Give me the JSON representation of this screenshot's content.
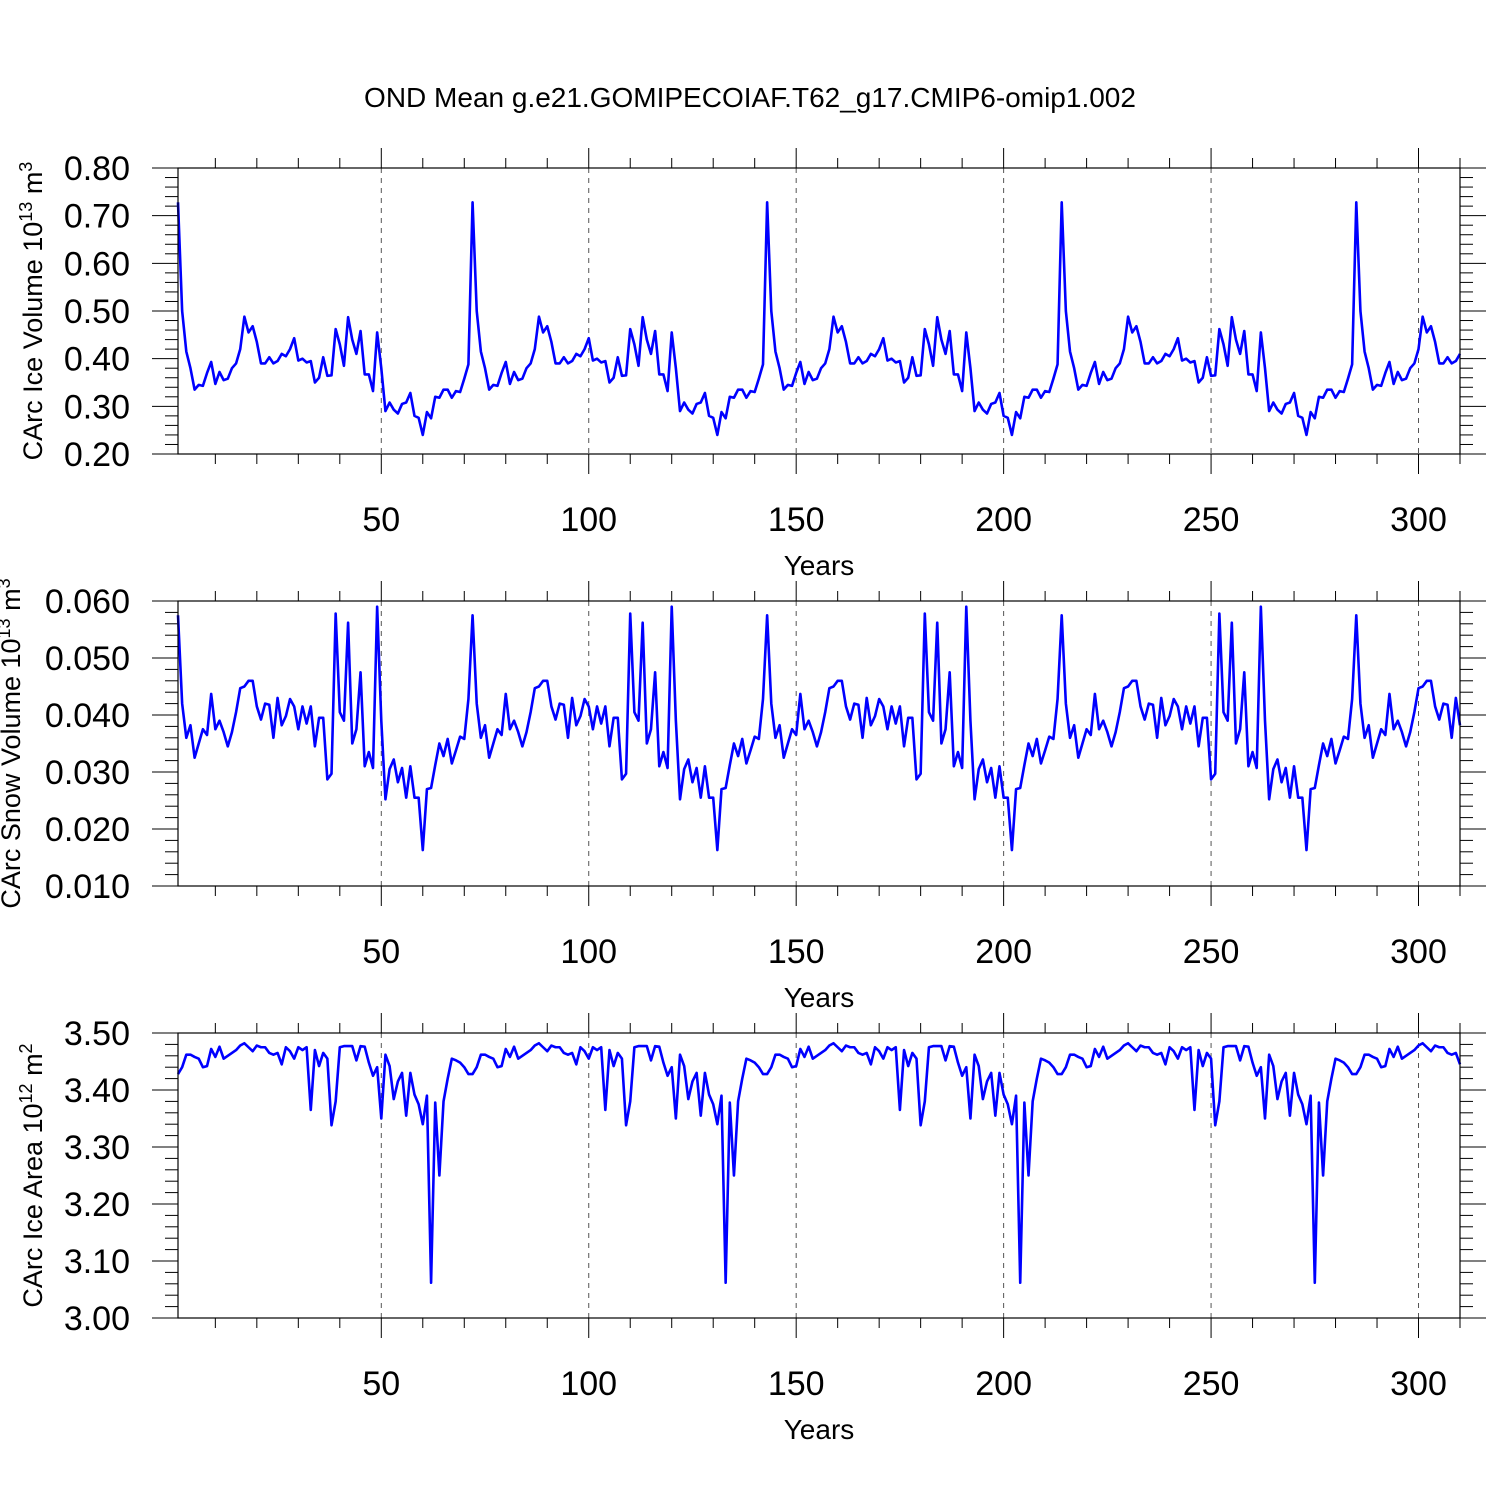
{
  "chart_data": {
    "title": "OND Mean g.e21.GOMIPECOIAF.T62_g17.CMIP6-omip1.002",
    "panels": [
      {
        "type": "line",
        "ylabel": "CArc Ice Volume 10",
        "ylabel_exp": "13",
        "ylabel_unit": " m",
        "ylabel_unit_exp": "3",
        "xlabel": "Years",
        "xlim": [
          1,
          310
        ],
        "ylim": [
          0.2,
          0.8
        ],
        "yticks": [
          0.2,
          0.3,
          0.4,
          0.5,
          0.6,
          0.7,
          0.8
        ],
        "ytick_labels": [
          "0.20",
          "0.30",
          "0.40",
          "0.50",
          "0.60",
          "0.70",
          "0.80"
        ],
        "xticks": [
          50,
          100,
          150,
          200,
          250,
          300
        ],
        "xtick_labels": [
          "50",
          "100",
          "150",
          "200",
          "250",
          "300"
        ],
        "x_start": 1,
        "cycle": [
          0.728,
          0.5,
          0.415,
          0.38,
          0.335,
          0.345,
          0.343,
          0.37,
          0.393,
          0.347,
          0.372,
          0.355,
          0.358,
          0.38,
          0.39,
          0.42,
          0.488,
          0.455,
          0.468,
          0.435,
          0.39,
          0.39,
          0.403,
          0.39,
          0.395,
          0.41,
          0.405,
          0.42,
          0.443,
          0.396,
          0.4,
          0.392,
          0.395,
          0.35,
          0.36,
          0.403,
          0.364,
          0.365,
          0.462,
          0.43,
          0.385,
          0.487,
          0.44,
          0.41,
          0.458,
          0.367,
          0.367,
          0.332,
          0.455,
          0.38,
          0.29,
          0.308,
          0.293,
          0.285,
          0.305,
          0.308,
          0.328,
          0.28,
          0.276,
          0.24,
          0.288,
          0.275,
          0.32,
          0.318,
          0.335,
          0.335,
          0.318,
          0.332,
          0.33,
          0.358,
          0.388
        ],
        "tail": [
          0.283,
          0.292,
          0.283,
          0.28,
          0.3,
          0.302,
          0.325,
          0.28,
          0.27,
          0.24,
          0.285,
          0.28
        ]
      },
      {
        "type": "line",
        "ylabel": "CArc Snow Volume 10",
        "ylabel_exp": "13",
        "ylabel_unit": " m",
        "ylabel_unit_exp": "3",
        "xlabel": "Years",
        "xlim": [
          1,
          310
        ],
        "ylim": [
          0.01,
          0.06
        ],
        "yticks": [
          0.01,
          0.02,
          0.03,
          0.04,
          0.05,
          0.06
        ],
        "ytick_labels": [
          "0.010",
          "0.020",
          "0.030",
          "0.040",
          "0.050",
          "0.060"
        ],
        "xticks": [
          50,
          100,
          150,
          200,
          250,
          300
        ],
        "xtick_labels": [
          "50",
          "100",
          "150",
          "200",
          "250",
          "300"
        ],
        "x_start": 1,
        "cycle": [
          0.0575,
          0.042,
          0.036,
          0.0382,
          0.0325,
          0.035,
          0.0375,
          0.0365,
          0.0437,
          0.0375,
          0.039,
          0.037,
          0.0345,
          0.037,
          0.0405,
          0.0447,
          0.045,
          0.046,
          0.046,
          0.0415,
          0.0392,
          0.042,
          0.0418,
          0.036,
          0.043,
          0.0382,
          0.0398,
          0.0428,
          0.0415,
          0.0375,
          0.0415,
          0.0385,
          0.0415,
          0.0345,
          0.0395,
          0.0395,
          0.0287,
          0.0297,
          0.0578,
          0.0405,
          0.039,
          0.0562,
          0.035,
          0.0375,
          0.0475,
          0.031,
          0.0335,
          0.0307,
          0.059,
          0.039,
          0.0252,
          0.0305,
          0.0322,
          0.0282,
          0.0307,
          0.0255,
          0.031,
          0.0255,
          0.0255,
          0.0163,
          0.027,
          0.0272,
          0.0312,
          0.035,
          0.0328,
          0.0358,
          0.0315,
          0.0338,
          0.0362,
          0.0358,
          0.0428
        ],
        "tail": [
          0.0375,
          0.025,
          0.03,
          0.0322,
          0.028,
          0.0308,
          0.026,
          0.0308,
          0.0252,
          0.0252,
          0.0163,
          0.0268,
          0.0268
        ]
      },
      {
        "type": "line",
        "ylabel": "CArc Ice Area 10",
        "ylabel_exp": "12",
        "ylabel_unit": " m",
        "ylabel_unit_exp": "2",
        "xlabel": "Years",
        "xlim": [
          1,
          310
        ],
        "ylim": [
          3.0,
          3.5
        ],
        "yticks": [
          3.0,
          3.1,
          3.2,
          3.3,
          3.4,
          3.5
        ],
        "ytick_labels": [
          "3.00",
          "3.10",
          "3.20",
          "3.30",
          "3.40",
          "3.50"
        ],
        "xticks": [
          50,
          100,
          150,
          200,
          250,
          300
        ],
        "xtick_labels": [
          "50",
          "100",
          "150",
          "200",
          "250",
          "300"
        ],
        "x_start": 1,
        "cycle": [
          3.428,
          3.44,
          3.462,
          3.462,
          3.458,
          3.455,
          3.44,
          3.442,
          3.472,
          3.458,
          3.476,
          3.455,
          3.46,
          3.465,
          3.47,
          3.478,
          3.482,
          3.475,
          3.468,
          3.478,
          3.475,
          3.475,
          3.465,
          3.462,
          3.465,
          3.445,
          3.475,
          3.468,
          3.455,
          3.475,
          3.47,
          3.475,
          3.365,
          3.47,
          3.442,
          3.465,
          3.455,
          3.338,
          3.38,
          3.475,
          3.477,
          3.477,
          3.477,
          3.452,
          3.477,
          3.476,
          3.448,
          3.425,
          3.44,
          3.35,
          3.462,
          3.442,
          3.384,
          3.415,
          3.43,
          3.355,
          3.43,
          3.392,
          3.375,
          3.34,
          3.39,
          3.062,
          3.378,
          3.25,
          3.38,
          3.42,
          3.455,
          3.452,
          3.448,
          3.44,
          3.428
        ],
        "tail": [
          3.438,
          3.42,
          3.325,
          3.39,
          3.37,
          3.34,
          3.325,
          3.375,
          3.05,
          3.37,
          3.24
        ]
      }
    ]
  }
}
